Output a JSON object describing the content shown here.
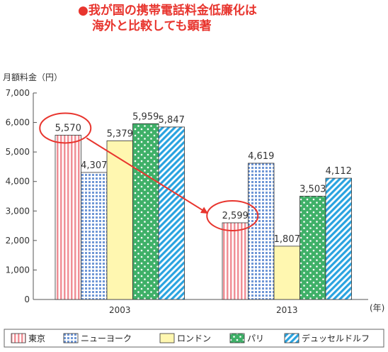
{
  "title": {
    "bullet": "●",
    "line1": "我が国の携帯電話料金低廉化は",
    "line2": "海外と比較しても顕著"
  },
  "chart_data": {
    "type": "bar",
    "ylabel": "月額料金（円）",
    "xunit": "(年)",
    "categories": [
      "2003",
      "2013"
    ],
    "ylim": [
      0,
      7000
    ],
    "yticks": [
      "0",
      "1,000",
      "2,000",
      "3,000",
      "4,000",
      "5,000",
      "6,000",
      "7,000"
    ],
    "series": [
      {
        "name": "東京",
        "values": [
          5570,
          2599
        ],
        "labels": [
          "5,570",
          "2,599"
        ],
        "color": "#f08f96",
        "pattern": "vstripes"
      },
      {
        "name": "ニューヨーク",
        "values": [
          4307,
          4619
        ],
        "labels": [
          "4,307",
          "4,619"
        ],
        "color": "#6f97d6",
        "pattern": "grid"
      },
      {
        "name": "ロンドン",
        "values": [
          5379,
          1807
        ],
        "labels": [
          "5,379",
          "1,807"
        ],
        "color": "#fff7b0",
        "pattern": "solid"
      },
      {
        "name": "パリ",
        "values": [
          5959,
          3503
        ],
        "labels": [
          "5,959",
          "3,503"
        ],
        "color": "#3fb068",
        "pattern": "dots"
      },
      {
        "name": "デュッセルドルフ",
        "values": [
          5847,
          4112
        ],
        "labels": [
          "5,847",
          "4,112"
        ],
        "color": "#29a3e0",
        "pattern": "diag"
      }
    ],
    "highlight": {
      "from": "5,570",
      "to": "2,599",
      "color": "#e8352e"
    },
    "grid": false,
    "legend": "bottom"
  }
}
